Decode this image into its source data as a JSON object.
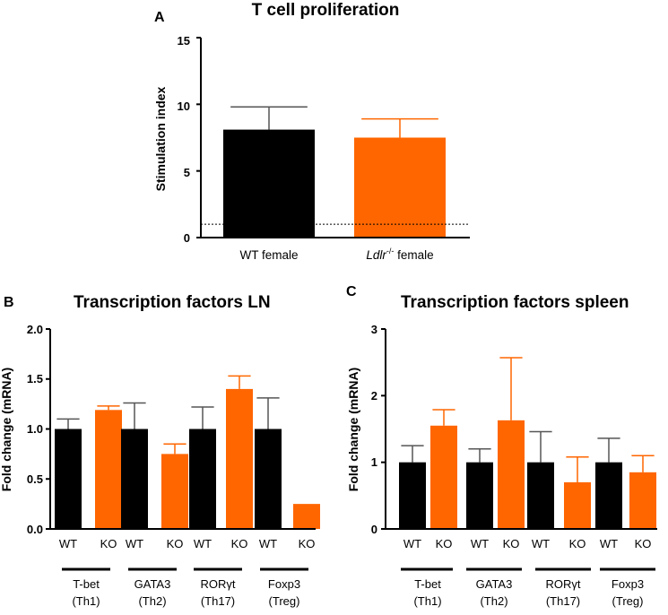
{
  "chart_data": [
    {
      "panel": "A",
      "type": "bar",
      "title": "T cell proliferation",
      "ylabel": "Stimulation index",
      "xlabel": "",
      "ylim": [
        0,
        15
      ],
      "yticks": [
        "0",
        "5",
        "10",
        "15"
      ],
      "reference_line": 1,
      "categories": [
        {
          "label": "WT female",
          "italic": "",
          "sup": "",
          "rest": ""
        },
        {
          "label": "",
          "italic": "Ldlr",
          "sup": "-/-",
          "rest": " female"
        }
      ],
      "values": [
        8.1,
        7.5
      ],
      "errors": [
        1.7,
        1.4
      ],
      "colors": [
        "#000000",
        "#ff6600"
      ]
    },
    {
      "panel": "B",
      "type": "bar",
      "title": "Transcription factors LN",
      "ylabel": "Fold change (mRNA)",
      "ylim": [
        0,
        2.0
      ],
      "yticks": [
        "0.0",
        "0.5",
        "1.0",
        "1.5",
        "2.0"
      ],
      "bar_labels": [
        "WT",
        "KO",
        "WT",
        "KO",
        "WT",
        "KO",
        "WT",
        "KO"
      ],
      "groups": [
        {
          "line1": "T-bet",
          "line2": "(Th1)"
        },
        {
          "line1": "GATA3",
          "line2": "(Th2)"
        },
        {
          "line1": "RORγt",
          "line2": "(Th17)"
        },
        {
          "line1": "Foxp3",
          "line2": "(Treg)"
        }
      ],
      "series": [
        {
          "name": "WT",
          "color": "#000000",
          "values": [
            1.0,
            1.0,
            1.0,
            1.0
          ],
          "errors": [
            0.1,
            0.26,
            0.22,
            0.31
          ]
        },
        {
          "name": "KO",
          "color": "#ff6600",
          "values": [
            1.19,
            0.75,
            1.4,
            0.25
          ],
          "errors": [
            0.04,
            0.1,
            0.13,
            0.0
          ]
        }
      ]
    },
    {
      "panel": "C",
      "type": "bar",
      "title": "Transcription factors spleen",
      "ylabel": "Fold change (mRNA)",
      "ylim": [
        0,
        3
      ],
      "yticks": [
        "0",
        "1",
        "2",
        "3"
      ],
      "bar_labels": [
        "WT",
        "KO",
        "WT",
        "KO",
        "WT",
        "KO",
        "WT",
        "KO"
      ],
      "groups": [
        {
          "line1": "T-bet",
          "line2": "(Th1)"
        },
        {
          "line1": "GATA3",
          "line2": "(Th2)"
        },
        {
          "line1": "RORγt",
          "line2": "(Th17)"
        },
        {
          "line1": "Foxp3",
          "line2": "(Treg)"
        }
      ],
      "series": [
        {
          "name": "WT",
          "color": "#000000",
          "values": [
            1.0,
            1.0,
            1.0,
            1.0
          ],
          "errors": [
            0.25,
            0.2,
            0.46,
            0.36
          ]
        },
        {
          "name": "KO",
          "color": "#ff6600",
          "values": [
            1.55,
            1.63,
            0.7,
            0.85
          ],
          "errors": [
            0.24,
            0.94,
            0.38,
            0.25
          ]
        }
      ]
    }
  ]
}
